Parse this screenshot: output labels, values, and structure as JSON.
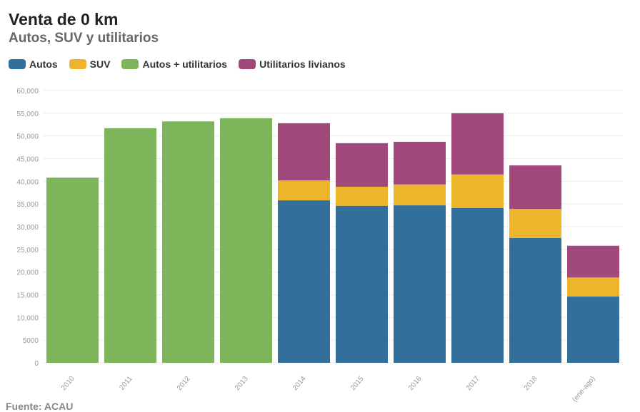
{
  "colors": {
    "Autos": "#336f9b",
    "SUV": "#ecb52b",
    "Autos + utilitarios": "#7db55a",
    "Utilitarios livianos": "#a1497a"
  },
  "chart_data": {
    "type": "bar",
    "stacked": true,
    "title": "Venta de 0 km",
    "subtitle": "Autos, SUV y utilitarios",
    "source": "Fuente: ACAU",
    "xlabel": "",
    "ylabel": "",
    "ylim": [
      0,
      60000
    ],
    "yticks": [
      0,
      5000,
      10000,
      15000,
      20000,
      25000,
      30000,
      35000,
      40000,
      45000,
      50000,
      55000,
      60000
    ],
    "ytick_labels": [
      "0",
      "5000",
      "10,000",
      "15,000",
      "20,000",
      "25,000",
      "30,000",
      "35,000",
      "40,000",
      "45,000",
      "50,000",
      "55,000",
      "60,000"
    ],
    "grid": true,
    "legend_position": "top-left",
    "categories": [
      "2010",
      "2011",
      "2012",
      "2013",
      "2014",
      "2015",
      "2016",
      "2017",
      "2018",
      "(ene-ago)"
    ],
    "series": [
      {
        "name": "Autos",
        "values": [
          0,
          0,
          0,
          0,
          35800,
          34600,
          34700,
          34100,
          27500,
          14600
        ]
      },
      {
        "name": "SUV",
        "values": [
          0,
          0,
          0,
          0,
          4400,
          4200,
          4600,
          7400,
          6400,
          4200
        ]
      },
      {
        "name": "Autos + utilitarios",
        "values": [
          40800,
          51700,
          53200,
          53900,
          0,
          0,
          0,
          0,
          0,
          0
        ]
      },
      {
        "name": "Utilitarios livianos",
        "values": [
          0,
          0,
          0,
          0,
          12600,
          9600,
          9400,
          13500,
          9600,
          7000
        ]
      }
    ]
  }
}
